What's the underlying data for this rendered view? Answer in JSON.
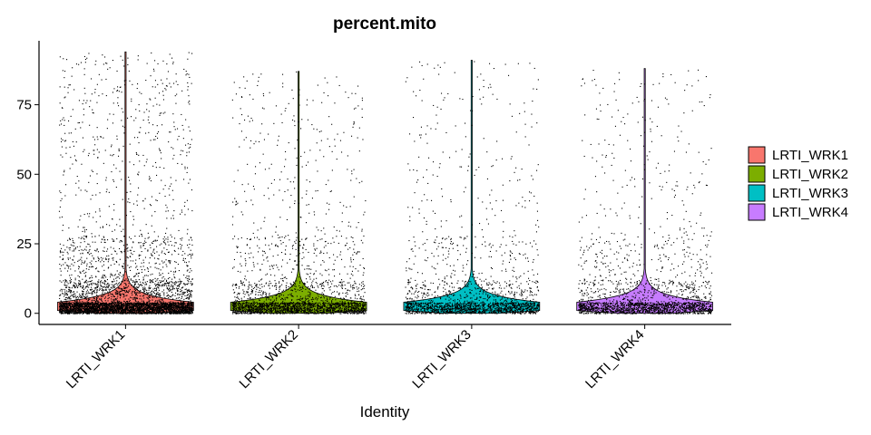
{
  "chart_data": {
    "type": "violin",
    "title": "percent.mito",
    "xlabel": "Identity",
    "ylabel": "",
    "ylim": [
      -4,
      98
    ],
    "yticks": [
      0,
      25,
      50,
      75
    ],
    "categories": [
      "LRTI_WRK1",
      "LRTI_WRK2",
      "LRTI_WRK3",
      "LRTI_WRK4"
    ],
    "colors": [
      "#F8766D",
      "#7CAE00",
      "#00BFC4",
      "#C77CFF"
    ],
    "series": [
      {
        "name": "LRTI_WRK1",
        "median": 2.5,
        "max": 94,
        "approx_points": 5200
      },
      {
        "name": "LRTI_WRK2",
        "median": 3.5,
        "max": 87,
        "approx_points": 2600
      },
      {
        "name": "LRTI_WRK3",
        "median": 1.5,
        "max": 91,
        "approx_points": 2000
      },
      {
        "name": "LRTI_WRK4",
        "median": 3.0,
        "max": 88,
        "approx_points": 2100
      }
    ],
    "legend": {
      "position": "right",
      "entries": [
        "LRTI_WRK1",
        "LRTI_WRK2",
        "LRTI_WRK3",
        "LRTI_WRK4"
      ]
    },
    "grid": false
  }
}
